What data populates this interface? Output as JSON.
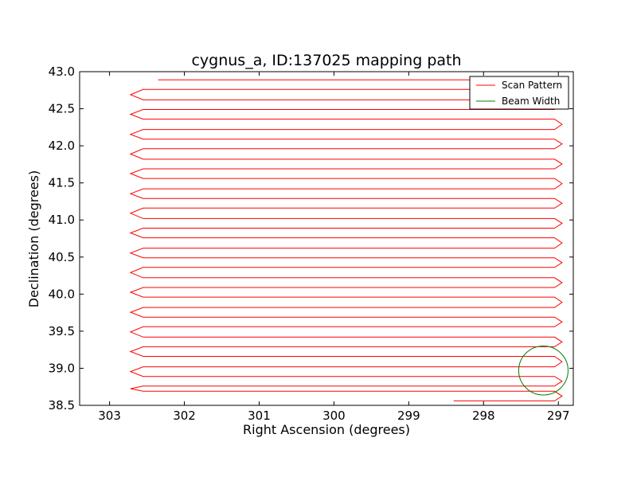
{
  "chart_data": {
    "type": "line",
    "title": "cygnus_a, ID:137025 mapping path",
    "xlabel": "Right Ascension (degrees)",
    "ylabel": "Declination (degrees)",
    "xlim": [
      303.4,
      296.8
    ],
    "ylim": [
      38.5,
      43.0
    ],
    "x_inverted": true,
    "xticks": [
      303,
      302,
      301,
      300,
      299,
      298,
      297
    ],
    "xtick_labels": [
      "303",
      "302",
      "301",
      "300",
      "299",
      "298",
      "297"
    ],
    "yticks": [
      38.5,
      39.0,
      39.5,
      40.0,
      40.5,
      41.0,
      41.5,
      42.0,
      42.5,
      43.0
    ],
    "ytick_labels": [
      "38.5",
      "39.0",
      "39.5",
      "40.0",
      "40.5",
      "41.0",
      "41.5",
      "42.0",
      "42.5",
      "43.0"
    ],
    "grid": false,
    "legend_position": "top-right",
    "series": [
      {
        "name": "Scan Pattern",
        "color": "#ff0000",
        "kind": "raster-scan",
        "start": [
          302.35,
          42.89
        ],
        "end": [
          298.4,
          38.56
        ],
        "west_edge_ra": 302.55,
        "east_edge_ra": 297.05,
        "west_turn_ra": 302.72,
        "east_turn_ra": 296.95,
        "rows_dec": [
          42.89,
          42.76,
          42.62,
          42.49,
          42.36,
          42.22,
          42.09,
          41.96,
          41.82,
          41.69,
          41.56,
          41.42,
          41.29,
          41.16,
          41.02,
          40.89,
          40.76,
          40.62,
          40.49,
          40.36,
          40.22,
          40.09,
          39.96,
          39.82,
          39.69,
          39.56,
          39.42,
          39.29,
          39.16,
          39.02,
          38.89,
          38.76,
          38.69,
          38.56
        ]
      },
      {
        "name": "Beam Width",
        "color": "#008000",
        "kind": "circle",
        "center_ra": 297.2,
        "center_dec": 38.97,
        "radius_deg": 0.33
      }
    ]
  }
}
